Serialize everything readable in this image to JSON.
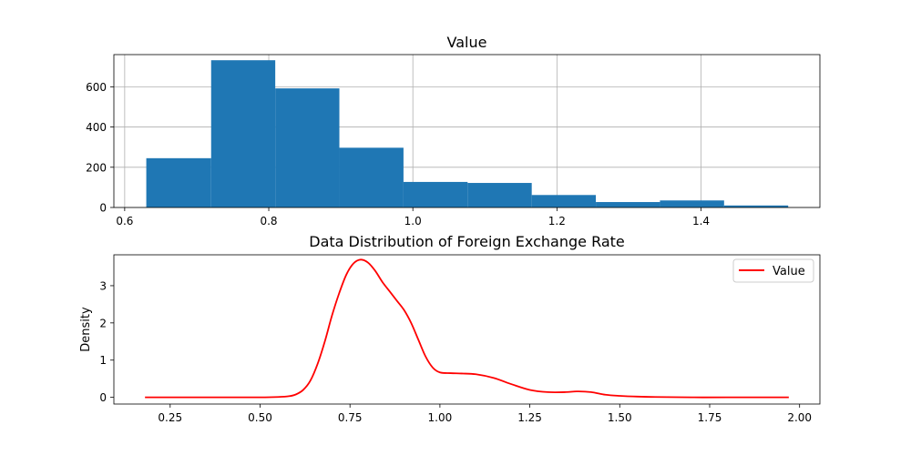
{
  "colors": {
    "bar": "#1f77b4",
    "line": "#ff0000",
    "grid": "#b0b0b0",
    "axis": "#000000"
  },
  "chart_data": [
    {
      "type": "bar",
      "title": "Value",
      "xlabel": "",
      "ylabel": "",
      "grid": true,
      "xlim": [
        0.585,
        1.565
      ],
      "ylim": [
        0,
        760
      ],
      "xticks": [
        0.6,
        0.8,
        1.0,
        1.2,
        1.4
      ],
      "xtick_labels": [
        "0.6",
        "0.8",
        "1.0",
        "1.2",
        "1.4"
      ],
      "yticks": [
        0,
        200,
        400,
        600
      ],
      "ytick_labels": [
        "0",
        "200",
        "400",
        "600"
      ],
      "bins": [
        {
          "x0": 0.63,
          "x1": 0.72,
          "count": 245
        },
        {
          "x0": 0.72,
          "x1": 0.809,
          "count": 732
        },
        {
          "x0": 0.809,
          "x1": 0.898,
          "count": 592
        },
        {
          "x0": 0.898,
          "x1": 0.987,
          "count": 297
        },
        {
          "x0": 0.987,
          "x1": 1.076,
          "count": 127
        },
        {
          "x0": 1.076,
          "x1": 1.165,
          "count": 122
        },
        {
          "x0": 1.165,
          "x1": 1.254,
          "count": 62
        },
        {
          "x0": 1.254,
          "x1": 1.343,
          "count": 27
        },
        {
          "x0": 1.343,
          "x1": 1.432,
          "count": 35
        },
        {
          "x0": 1.432,
          "x1": 1.521,
          "count": 10
        }
      ]
    },
    {
      "type": "line",
      "title": "Data Distribution of Foreign Exchange Rate",
      "xlabel": "",
      "ylabel": "Density",
      "grid": false,
      "legend_position": "top-right",
      "xlim": [
        0.0935,
        2.0565
      ],
      "ylim": [
        -0.18,
        3.83
      ],
      "xticks": [
        0.25,
        0.5,
        0.75,
        1.0,
        1.25,
        1.5,
        1.75,
        2.0
      ],
      "xtick_labels": [
        "0.25",
        "0.50",
        "0.75",
        "1.00",
        "1.25",
        "1.50",
        "1.75",
        "2.00"
      ],
      "yticks": [
        0,
        1,
        2,
        3
      ],
      "ytick_labels": [
        "0",
        "1",
        "2",
        "3"
      ],
      "series": [
        {
          "name": "Value",
          "x": [
            0.18,
            0.3,
            0.4,
            0.5,
            0.55,
            0.58,
            0.6,
            0.62,
            0.64,
            0.66,
            0.68,
            0.7,
            0.72,
            0.74,
            0.76,
            0.78,
            0.8,
            0.82,
            0.84,
            0.86,
            0.88,
            0.9,
            0.92,
            0.94,
            0.96,
            0.98,
            1.0,
            1.03,
            1.06,
            1.1,
            1.15,
            1.2,
            1.25,
            1.3,
            1.35,
            1.38,
            1.42,
            1.46,
            1.5,
            1.55,
            1.6,
            1.7,
            1.8,
            1.97
          ],
          "y": [
            0,
            0,
            0,
            0,
            0.01,
            0.03,
            0.08,
            0.2,
            0.45,
            0.9,
            1.5,
            2.2,
            2.8,
            3.3,
            3.6,
            3.7,
            3.62,
            3.4,
            3.1,
            2.85,
            2.6,
            2.35,
            2.0,
            1.55,
            1.1,
            0.8,
            0.67,
            0.65,
            0.64,
            0.62,
            0.52,
            0.35,
            0.2,
            0.14,
            0.14,
            0.16,
            0.14,
            0.07,
            0.04,
            0.02,
            0.01,
            0,
            0,
            0
          ]
        }
      ]
    }
  ]
}
